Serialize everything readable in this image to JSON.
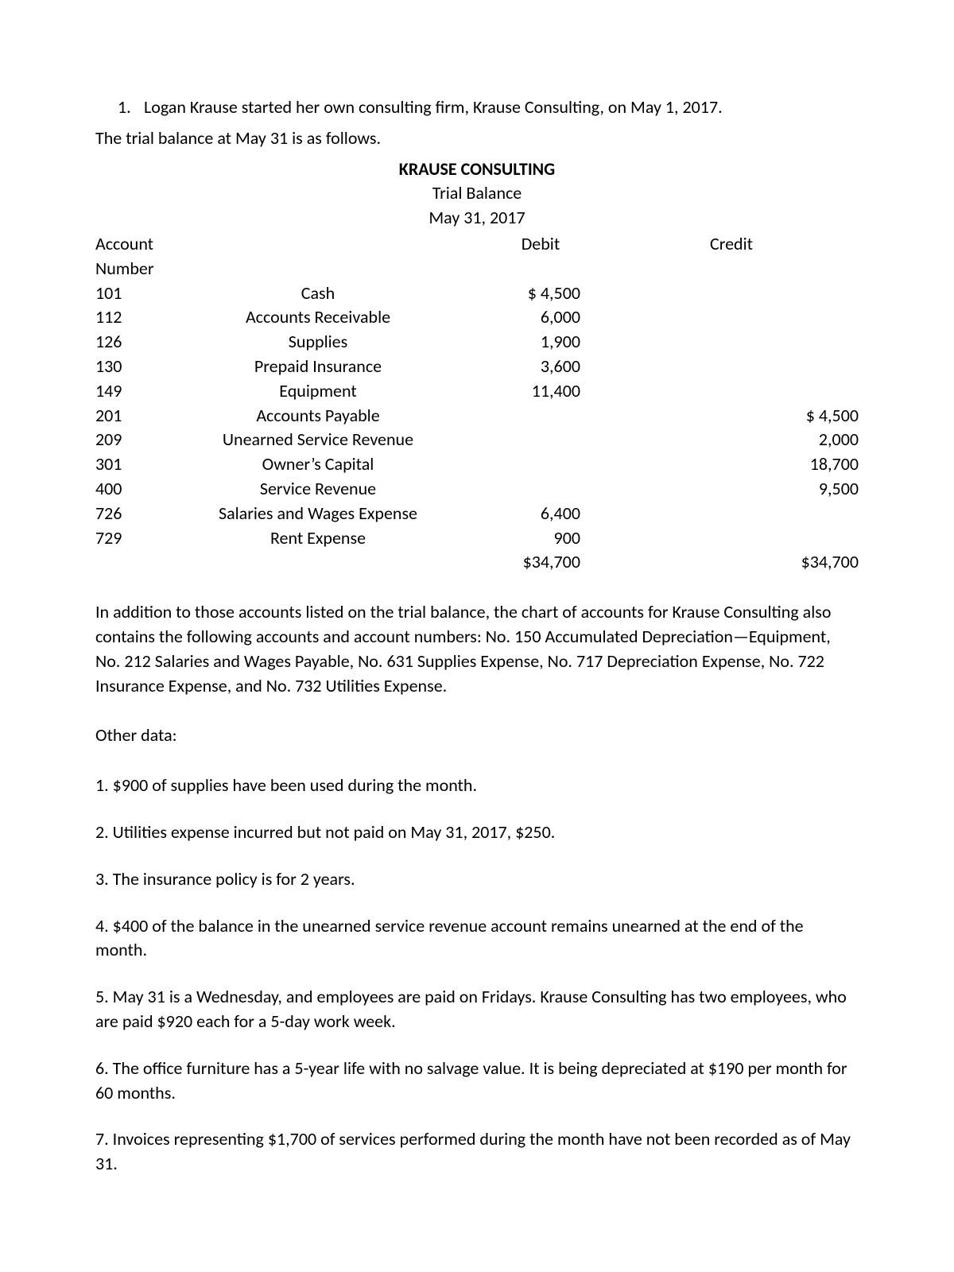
{
  "intro": {
    "number": "1.",
    "line1": "Logan Krause started her own consulting firm, Krause Consulting, on May 1, 2017.",
    "line2": "The trial balance at May 31 is as follows."
  },
  "header": {
    "company": "KRAUSE CONSULTING",
    "title": "Trial Balance",
    "date": "May 31, 2017"
  },
  "columns": {
    "acct": "Account Number",
    "debit": "Debit",
    "credit": "Credit"
  },
  "rows": [
    {
      "acct": "101",
      "name": "Cash",
      "debit": "$ 4,500",
      "credit": ""
    },
    {
      "acct": "112",
      "name": "Accounts Receivable",
      "debit": "6,000",
      "credit": ""
    },
    {
      "acct": "126",
      "name": "Supplies",
      "debit": "1,900",
      "credit": ""
    },
    {
      "acct": "130",
      "name": "Prepaid Insurance",
      "debit": "3,600",
      "credit": ""
    },
    {
      "acct": "149",
      "name": "Equipment",
      "debit": "11,400",
      "credit": ""
    },
    {
      "acct": "201",
      "name": "Accounts Payable",
      "debit": "",
      "credit": "$ 4,500"
    },
    {
      "acct": "209",
      "name": "Unearned Service Revenue",
      "debit": "",
      "credit": "2,000"
    },
    {
      "acct": "301",
      "name": "Owner’s Capital",
      "debit": "",
      "credit": "18,700"
    },
    {
      "acct": "400",
      "name": "Service Revenue",
      "debit": "",
      "credit": "9,500"
    },
    {
      "acct": "726",
      "name": "Salaries and Wages Expense",
      "debit": "6,400",
      "credit": ""
    },
    {
      "acct": "729",
      "name": "Rent Expense",
      "debit": "900",
      "credit": ""
    }
  ],
  "totals": {
    "debit": "$34,700",
    "credit": "$34,700"
  },
  "chart_para": "In addition to those accounts listed on the trial balance, the chart of accounts for Krause Consulting also contains the following accounts and account numbers: No. 150 Accumulated Depreciation—Equipment, No. 212 Salaries and Wages Payable, No. 631 Supplies Expense, No. 717 Depreciation Expense, No. 722 Insurance Expense, and No. 732 Utilities Expense.",
  "other_label": "Other data:",
  "other": [
    "1. $900 of supplies have been used during the month.",
    "2. Utilities expense incurred but not paid on May 31, 2017, $250.",
    "3. The insurance policy is for 2 years.",
    "4. $400 of the balance in the unearned service revenue account remains unearned at the end of the month.",
    "5. May 31 is a Wednesday, and employees are paid on Fridays. Krause Consulting has two employees, who are paid $920 each for a 5-day work week.",
    "6. The office furniture has a 5-year life with no salvage value. It is being depreciated at $190 per month for 60 months.",
    "7. Invoices representing $1,700 of services performed during the month have not been recorded as of May 31."
  ]
}
